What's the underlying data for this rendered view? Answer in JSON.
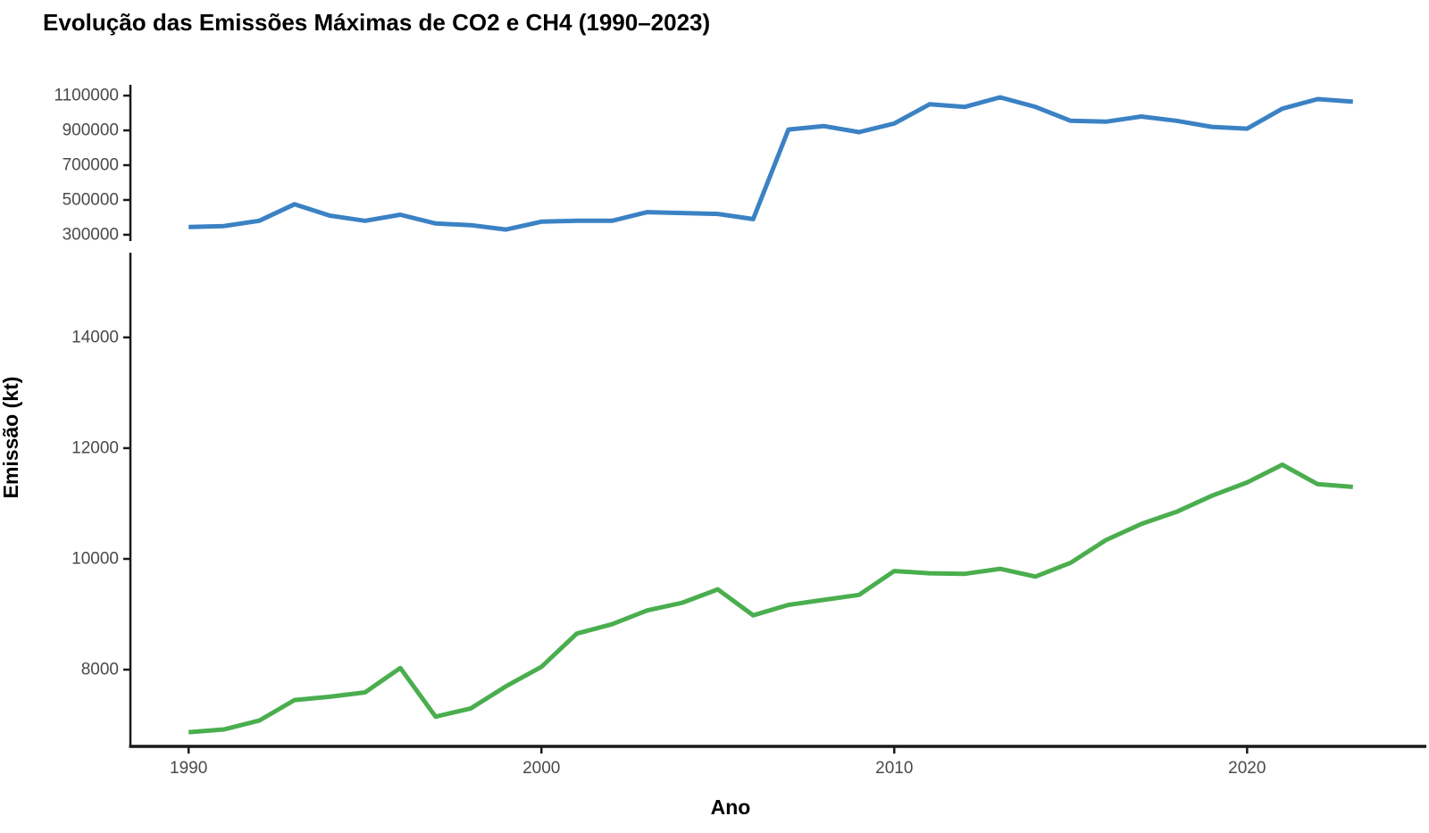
{
  "title": "Evolução das Emissões Máximas de CO2 e CH4 (1990–2023)",
  "axes": {
    "x_label": "Ano",
    "y_label": "Emissão (kt)"
  },
  "colors": {
    "co2_line": "#3B82C4",
    "ch4_line": "#4AAE4E",
    "axis_line": "#1a1a1a",
    "tick_label": "#4a4a4a",
    "background": "#ffffff"
  },
  "chart_data": {
    "type": "line",
    "title": "Evolução das Emissões Máximas de CO2 e CH4 (1990–2023)",
    "xlabel": "Ano",
    "ylabel": "Emissão (kt)",
    "grid": false,
    "legend": "none",
    "x": [
      1990,
      1991,
      1992,
      1993,
      1994,
      1995,
      1996,
      1997,
      1998,
      1999,
      2000,
      2001,
      2002,
      2003,
      2004,
      2005,
      2006,
      2007,
      2008,
      2009,
      2010,
      2011,
      2012,
      2013,
      2014,
      2015,
      2016,
      2017,
      2018,
      2019,
      2020,
      2021,
      2022,
      2023
    ],
    "xticks": [
      1990,
      2000,
      2010,
      2020
    ],
    "xlim": [
      1988.35,
      2025.08
    ],
    "panels": [
      {
        "series": "CO2",
        "color": "#3B82C4",
        "ylim": [
          274000,
          1162000
        ],
        "yticks": [
          300000,
          500000,
          700000,
          900000,
          1100000
        ],
        "values": [
          345000,
          350000,
          380000,
          475000,
          410000,
          380000,
          415000,
          365000,
          355000,
          330000,
          375000,
          380000,
          380000,
          430000,
          425000,
          420000,
          390000,
          905000,
          925000,
          890000,
          940000,
          1050000,
          1035000,
          1090000,
          1035000,
          955000,
          950000,
          980000,
          955000,
          920000,
          910000,
          1025000,
          1080000,
          1065000
        ]
      },
      {
        "series": "CH4",
        "color": "#4AAE4E",
        "ylim": [
          6630,
          15530
        ],
        "yticks": [
          8000,
          10000,
          12000,
          14000
        ],
        "values": [
          6870,
          6920,
          7080,
          7450,
          7510,
          7590,
          8030,
          7150,
          7300,
          7700,
          8050,
          8650,
          8820,
          9070,
          9210,
          9450,
          8980,
          9170,
          9260,
          9350,
          9780,
          9740,
          9730,
          9820,
          9680,
          9930,
          10340,
          10630,
          10850,
          11140,
          11380,
          11700,
          11350,
          11300
        ]
      }
    ]
  }
}
